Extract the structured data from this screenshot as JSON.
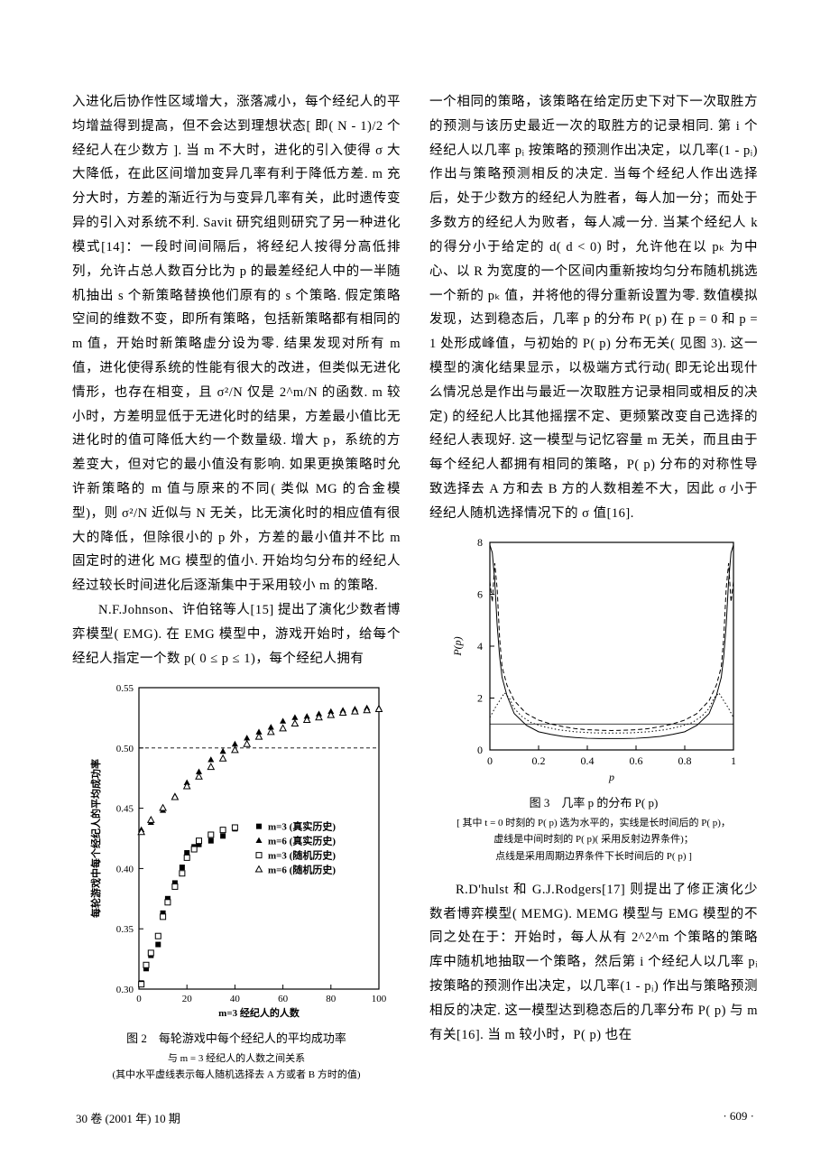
{
  "left": {
    "para1": "入进化后协作性区域增大，涨落减小，每个经纪人的平均增益得到提高，但不会达到理想状态[ 即( N - 1)/2 个经纪人在少数方 ]. 当 m 不大时，进化的引入使得 σ 大大降低，在此区间增加变异几率有利于降低方差. m 充分大时，方差的渐近行为与变异几率有关，此时遗传变异的引入对系统不利. Savit 研究组则研究了另一种进化模式[14]：一段时间间隔后，将经纪人按得分高低排列，允许占总人数百分比为 p 的最差经纪人中的一半随机抽出 s 个新策略替换他们原有的 s 个策略. 假定策略空间的维数不变，即所有策略，包括新策略都有相同的 m 值，开始时新策略虚分设为零. 结果发现对所有 m 值，进化使得系统的性能有很大的改进，但类似无进化情形，也存在相变，且 σ²/N 仅是 2^m/N 的函数. m 较小时，方差明显低于无进化时的结果，方差最小值比无进化时的值可降低大约一个数量级. 增大 p，系统的方差变大，但对它的最小值没有影响. 如果更换策略时允许新策略的 m 值与原来的不同( 类似 MG 的合金模型)，则 σ²/N 近似与 N 无关，比无演化时的相应值有很大的降低，但除很小的 p 外，方差的最小值并不比 m 固定时的进化 MG 模型的值小. 开始均匀分布的经纪人经过较长时间进化后逐渐集中于采用较小 m 的策略.",
    "para2": "N.F.Johnson、许伯铭等人[15] 提出了演化少数者博弈模型( EMG). 在 EMG 模型中，游戏开始时，给每个经纪人指定一个数 p( 0 ≤ p ≤ 1)，每个经纪人拥有"
  },
  "right": {
    "para1": "一个相同的策略，该策略在给定历史下对下一次取胜方的预测与该历史最近一次的取胜方的记录相同. 第 i 个经纪人以几率 pᵢ 按策略的预测作出决定，以几率(1 - pᵢ) 作出与策略预测相反的决定. 当每个经纪人作出选择后，处于少数方的经纪人为胜者，每人加一分；而处于多数方的经纪人为败者，每人减一分. 当某个经纪人 k 的得分小于给定的 d( d < 0) 时，允许他在以 pₖ 为中心、以 R 为宽度的一个区间内重新按均匀分布随机挑选一个新的 pₖ 值，并将他的得分重新设置为零. 数值模拟发现，达到稳态后，几率 p 的分布 P( p) 在 p = 0 和 p = 1 处形成峰值，与初始的 P( p) 分布无关( 见图 3). 这一模型的演化结果显示，以极端方式行动( 即无论出现什么情况总是作出与最近一次取胜方记录相同或相反的决定) 的经纪人比其他摇摆不定、更频繁改变自己选择的经纪人表现好. 这一模型与记忆容量 m 无关，而且由于每个经纪人都拥有相同的策略，P( p) 分布的对称性导致选择去 A 方和去 B 方的人数相差不大，因此 σ 小于经纪人随机选择情况下的 σ 值[16].",
    "para2": "R.D'hulst 和 G.J.Rodgers[17] 则提出了修正演化少数者博弈模型( MEMG). MEMG 模型与 EMG 模型的不同之处在于：开始时，每人从有 2^2^m 个策略的策略库中随机地抽取一个策略，然后第 i 个经纪人以几率 pᵢ 按策略的预测作出决定，以几率(1 - pᵢ) 作出与策略预测相反的决定. 这一模型达到稳态后的几率分布 P( p) 与 m 有关[16]. 当 m 较小时，P( p) 也在"
  },
  "fig2": {
    "caption_main": "图 2　每轮游戏中每个经纪人的平均成功率",
    "caption_sub1": "与 m = 3 经纪人的人数之间关系",
    "caption_sub2": "(其中水平虚线表示每人随机选择去 A 方或者 B 方时的值)",
    "xlabel": "m=3 经纪人的人数",
    "ylabel": "每轮游戏中每个经纪人的平均成功率",
    "xlim": [
      0,
      100
    ],
    "ylim": [
      0.3,
      0.55
    ],
    "xticks": [
      0,
      20,
      40,
      60,
      80,
      100
    ],
    "yticks": [
      0.3,
      0.35,
      0.4,
      0.45,
      0.5,
      0.55
    ],
    "ref_line_y": 0.5,
    "legend": [
      {
        "marker": "square-filled",
        "label": "m=3 (真实历史)"
      },
      {
        "marker": "triangle-filled",
        "label": "m=6 (真实历史)"
      },
      {
        "marker": "square-open",
        "label": "m=3 (随机历史)"
      },
      {
        "marker": "triangle-open",
        "label": "m=6 (随机历史)"
      }
    ],
    "series": {
      "sq_filled": {
        "marker": "square-filled",
        "color": "#000",
        "data": [
          [
            1,
            0.305
          ],
          [
            3,
            0.317
          ],
          [
            5,
            0.328
          ],
          [
            8,
            0.337
          ],
          [
            10,
            0.363
          ],
          [
            12,
            0.375
          ],
          [
            15,
            0.388
          ],
          [
            18,
            0.401
          ],
          [
            20,
            0.413
          ],
          [
            23,
            0.418
          ],
          [
            25,
            0.42
          ],
          [
            30,
            0.423
          ],
          [
            35,
            0.427
          ],
          [
            40,
            0.433
          ]
        ]
      },
      "sq_open": {
        "marker": "square-open",
        "color": "#000",
        "data": [
          [
            1,
            0.304
          ],
          [
            3,
            0.32
          ],
          [
            5,
            0.33
          ],
          [
            8,
            0.344
          ],
          [
            10,
            0.36
          ],
          [
            12,
            0.372
          ],
          [
            15,
            0.385
          ],
          [
            18,
            0.396
          ],
          [
            20,
            0.409
          ],
          [
            23,
            0.416
          ],
          [
            25,
            0.423
          ],
          [
            30,
            0.428
          ],
          [
            35,
            0.432
          ],
          [
            40,
            0.434
          ]
        ]
      },
      "tri_filled": {
        "marker": "triangle-filled",
        "color": "#000",
        "data": [
          [
            1,
            0.432
          ],
          [
            5,
            0.438
          ],
          [
            10,
            0.448
          ],
          [
            15,
            0.46
          ],
          [
            20,
            0.471
          ],
          [
            25,
            0.48
          ],
          [
            30,
            0.49
          ],
          [
            35,
            0.497
          ],
          [
            40,
            0.503
          ],
          [
            45,
            0.508
          ],
          [
            50,
            0.513
          ],
          [
            55,
            0.517
          ],
          [
            60,
            0.522
          ],
          [
            65,
            0.525
          ],
          [
            70,
            0.526
          ],
          [
            75,
            0.528
          ],
          [
            80,
            0.53
          ],
          [
            85,
            0.531
          ],
          [
            90,
            0.532
          ],
          [
            95,
            0.533
          ],
          [
            100,
            0.533
          ]
        ]
      },
      "tri_open": {
        "marker": "triangle-open",
        "color": "#000",
        "data": [
          [
            1,
            0.43
          ],
          [
            5,
            0.44
          ],
          [
            10,
            0.45
          ],
          [
            15,
            0.459
          ],
          [
            20,
            0.468
          ],
          [
            25,
            0.476
          ],
          [
            30,
            0.484
          ],
          [
            35,
            0.491
          ],
          [
            40,
            0.498
          ],
          [
            45,
            0.503
          ],
          [
            50,
            0.509
          ],
          [
            55,
            0.513
          ],
          [
            60,
            0.516
          ],
          [
            65,
            0.52
          ],
          [
            70,
            0.523
          ],
          [
            75,
            0.525
          ],
          [
            80,
            0.527
          ],
          [
            85,
            0.529
          ],
          [
            90,
            0.53
          ],
          [
            95,
            0.531
          ],
          [
            100,
            0.532
          ]
        ]
      }
    },
    "background": "#ffffff",
    "axis_color": "#000000",
    "label_fontsize": 11,
    "tick_fontsize": 11,
    "marker_size": 6
  },
  "fig3": {
    "caption_main": "图 3　几率 p 的分布 P( p)",
    "caption_sub1": "[ 其中 t = 0 时刻的 P( p) 选为水平的，实线是长时间后的 P( p)，",
    "caption_sub2": "虚线是中间时刻的 P( p)( 采用反射边界条件)；",
    "caption_sub3": "点线是采用周期边界条件下长时间后的 P( p) ]",
    "xlabel": "p",
    "ylabel": "P(p)",
    "xlim": [
      0,
      1
    ],
    "ylim": [
      0,
      8
    ],
    "xticks": [
      0,
      0.2,
      0.4,
      0.6,
      0.8,
      1
    ],
    "yticks": [
      0,
      2,
      4,
      6,
      8
    ],
    "flat_line_y": 1.0,
    "series": {
      "solid": {
        "style": "solid",
        "color": "#000",
        "data": [
          [
            0.0,
            7.9
          ],
          [
            0.01,
            7.6
          ],
          [
            0.02,
            6.5
          ],
          [
            0.03,
            4.8
          ],
          [
            0.04,
            3.6
          ],
          [
            0.05,
            2.8
          ],
          [
            0.07,
            2.1
          ],
          [
            0.1,
            1.4
          ],
          [
            0.15,
            0.95
          ],
          [
            0.2,
            0.7
          ],
          [
            0.25,
            0.6
          ],
          [
            0.3,
            0.52
          ],
          [
            0.35,
            0.48
          ],
          [
            0.4,
            0.45
          ],
          [
            0.45,
            0.44
          ],
          [
            0.5,
            0.44
          ],
          [
            0.55,
            0.44
          ],
          [
            0.6,
            0.45
          ],
          [
            0.65,
            0.48
          ],
          [
            0.7,
            0.52
          ],
          [
            0.75,
            0.6
          ],
          [
            0.8,
            0.7
          ],
          [
            0.85,
            0.95
          ],
          [
            0.9,
            1.4
          ],
          [
            0.93,
            2.1
          ],
          [
            0.95,
            2.8
          ],
          [
            0.96,
            3.6
          ],
          [
            0.97,
            4.8
          ],
          [
            0.98,
            6.5
          ],
          [
            0.99,
            7.6
          ],
          [
            1.0,
            7.9
          ]
        ]
      },
      "dashed": {
        "style": "dashed",
        "color": "#000",
        "data": [
          [
            0.0,
            6.5
          ],
          [
            0.01,
            5.7
          ],
          [
            0.02,
            7.2
          ],
          [
            0.03,
            6.2
          ],
          [
            0.04,
            4.3
          ],
          [
            0.05,
            3.2
          ],
          [
            0.07,
            2.5
          ],
          [
            0.1,
            1.9
          ],
          [
            0.15,
            1.4
          ],
          [
            0.2,
            1.15
          ],
          [
            0.25,
            1.0
          ],
          [
            0.3,
            0.9
          ],
          [
            0.35,
            0.82
          ],
          [
            0.4,
            0.78
          ],
          [
            0.45,
            0.76
          ],
          [
            0.5,
            0.75
          ],
          [
            0.55,
            0.76
          ],
          [
            0.6,
            0.78
          ],
          [
            0.65,
            0.82
          ],
          [
            0.7,
            0.9
          ],
          [
            0.75,
            1.0
          ],
          [
            0.8,
            1.15
          ],
          [
            0.85,
            1.4
          ],
          [
            0.9,
            1.9
          ],
          [
            0.93,
            2.5
          ],
          [
            0.95,
            3.2
          ],
          [
            0.96,
            4.3
          ],
          [
            0.97,
            6.2
          ],
          [
            0.98,
            7.2
          ],
          [
            0.99,
            5.7
          ],
          [
            1.0,
            6.5
          ]
        ]
      },
      "dotted": {
        "style": "dotted",
        "color": "#000",
        "data": [
          [
            0.0,
            1.25
          ],
          [
            0.02,
            1.6
          ],
          [
            0.04,
            1.9
          ],
          [
            0.06,
            2.2
          ],
          [
            0.08,
            2.0
          ],
          [
            0.1,
            1.6
          ],
          [
            0.13,
            1.3
          ],
          [
            0.17,
            1.05
          ],
          [
            0.22,
            0.9
          ],
          [
            0.28,
            0.78
          ],
          [
            0.35,
            0.7
          ],
          [
            0.42,
            0.66
          ],
          [
            0.5,
            0.65
          ],
          [
            0.58,
            0.66
          ],
          [
            0.65,
            0.7
          ],
          [
            0.72,
            0.78
          ],
          [
            0.78,
            0.9
          ],
          [
            0.83,
            1.05
          ],
          [
            0.87,
            1.3
          ],
          [
            0.9,
            1.6
          ],
          [
            0.92,
            2.0
          ],
          [
            0.94,
            2.2
          ],
          [
            0.96,
            1.9
          ],
          [
            0.98,
            1.6
          ],
          [
            1.0,
            1.25
          ]
        ]
      }
    },
    "background": "#ffffff",
    "axis_color": "#000000",
    "label_fontsize": 12,
    "tick_fontsize": 12
  },
  "footer": {
    "left": "30 卷 (2001 年) 10 期",
    "right": "· 609 ·"
  }
}
